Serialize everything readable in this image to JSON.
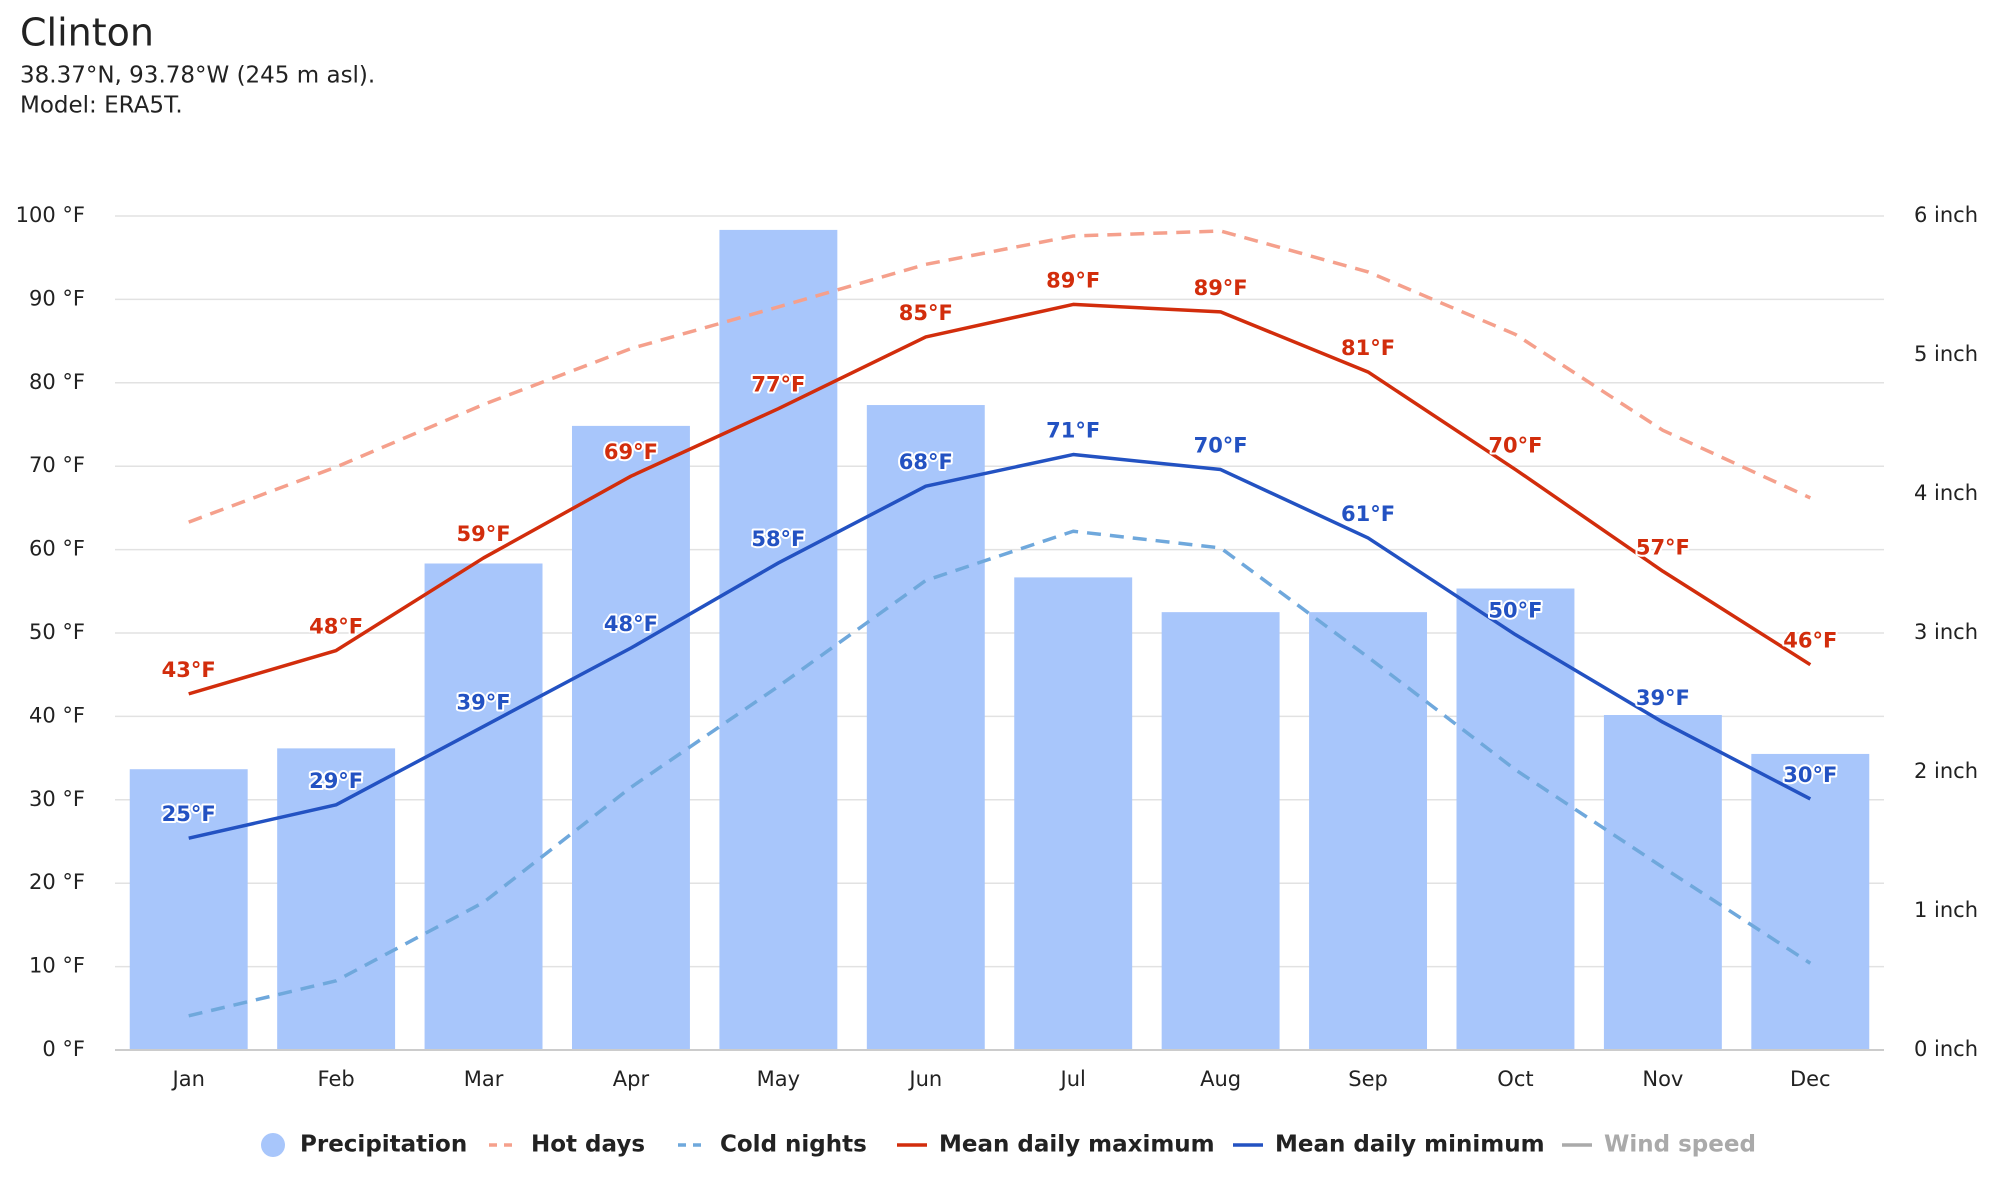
{
  "chart_data": {
    "type": "combo",
    "title": "Clinton",
    "subtitle": [
      "38.37°N, 93.78°W (245 m asl).",
      "Model: ERA5T."
    ],
    "categories": [
      "Jan",
      "Feb",
      "Mar",
      "Apr",
      "May",
      "Jun",
      "Jul",
      "Aug",
      "Sep",
      "Oct",
      "Nov",
      "Dec"
    ],
    "ylim": [
      0,
      100
    ],
    "yticks": [
      {
        "value": 0,
        "label": "0 °F"
      },
      {
        "value": 10,
        "label": "10 °F"
      },
      {
        "value": 20,
        "label": "20 °F"
      },
      {
        "value": 30,
        "label": "30 °F"
      },
      {
        "value": 40,
        "label": "40 °F"
      },
      {
        "value": 50,
        "label": "50 °F"
      },
      {
        "value": 60,
        "label": "60 °F"
      },
      {
        "value": 70,
        "label": "70 °F"
      },
      {
        "value": 80,
        "label": "80 °F"
      },
      {
        "value": 90,
        "label": "90 °F"
      },
      {
        "value": 100,
        "label": "100 °F"
      }
    ],
    "y2lim": [
      0,
      6
    ],
    "y2ticks": [
      {
        "value": 0,
        "label": "0 inch"
      },
      {
        "value": 1,
        "label": "1 inch"
      },
      {
        "value": 2,
        "label": "2 inch"
      },
      {
        "value": 3,
        "label": "3 inch"
      },
      {
        "value": 4,
        "label": "4 inch"
      },
      {
        "value": 5,
        "label": "5 inch"
      },
      {
        "value": 6,
        "label": "6 inch"
      }
    ],
    "grid": true,
    "legend": "bottom",
    "series": [
      {
        "name": "Precipitation",
        "type": "bar",
        "axis": "y2",
        "color": "#a8c6fb",
        "values": [
          2.02,
          2.17,
          3.5,
          4.49,
          5.9,
          4.64,
          3.4,
          3.15,
          3.15,
          3.32,
          2.41,
          2.13
        ]
      },
      {
        "name": "Hot days",
        "type": "line",
        "dashed": true,
        "color": "#f5a08c",
        "values": [
          63.3,
          69.9,
          77.4,
          84.1,
          89.1,
          94.2,
          97.6,
          98.2,
          93.3,
          85.8,
          74.3,
          66.2
        ]
      },
      {
        "name": "Cold nights",
        "type": "line",
        "dashed": true,
        "color": "#6fa8dc",
        "values": [
          4.1,
          8.3,
          17.7,
          31.5,
          43.6,
          56.3,
          62.2,
          60.2,
          47.1,
          33.6,
          21.9,
          10.4
        ]
      },
      {
        "name": "Mean daily maximum",
        "type": "line",
        "color": "#d22d0c",
        "values": [
          42.7,
          47.9,
          59,
          68.8,
          76.9,
          85.5,
          89.4,
          88.5,
          81.3,
          69.6,
          57.4,
          46.2
        ],
        "value_labels": [
          "43°F",
          "48°F",
          "59°F",
          "69°F",
          "77°F",
          "85°F",
          "89°F",
          "89°F",
          "81°F",
          "70°F",
          "57°F",
          "46°F"
        ]
      },
      {
        "name": "Mean daily minimum",
        "type": "line",
        "color": "#2352c2",
        "values": [
          25.4,
          29.4,
          38.8,
          48.2,
          58.4,
          67.6,
          71.4,
          69.6,
          61.4,
          49.8,
          39.3,
          30.1
        ],
        "value_labels": [
          "25°F",
          "29°F",
          "39°F",
          "48°F",
          "58°F",
          "68°F",
          "71°F",
          "70°F",
          "61°F",
          "50°F",
          "39°F",
          "30°F"
        ]
      },
      {
        "name": "Wind speed",
        "type": "line",
        "hidden": true,
        "color": "#aaaaaa",
        "values": [
          null,
          null,
          null,
          null,
          null,
          null,
          null,
          null,
          null,
          null,
          null,
          null
        ]
      }
    ]
  }
}
